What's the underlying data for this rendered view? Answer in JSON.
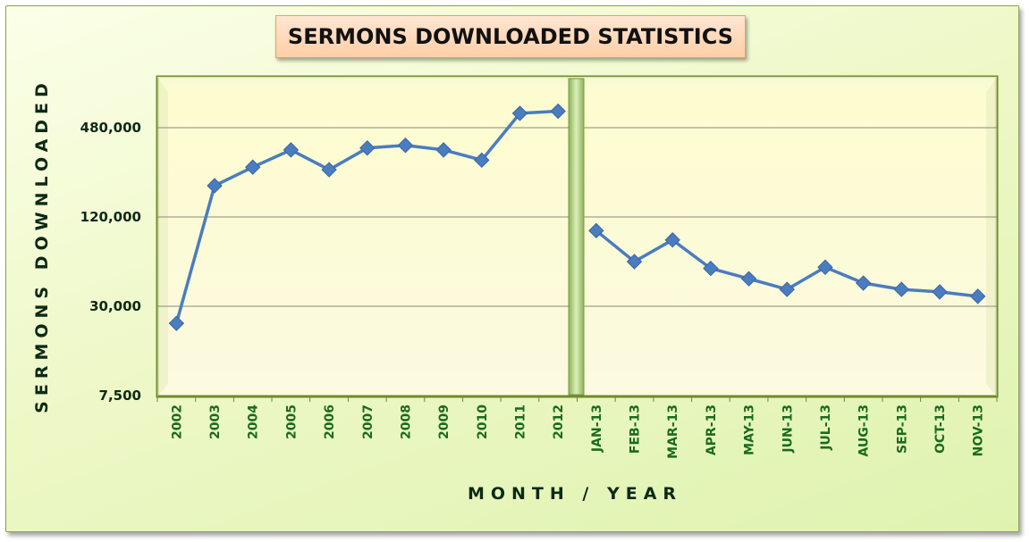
{
  "chart_data": {
    "type": "line",
    "title": "SERMONS DOWNLOADED STATISTICS",
    "xlabel": "MONTH  /  YEAR",
    "ylabel": "SERMONS  DOWNLOADED",
    "yscale": "log",
    "ylim": [
      7500,
      960000
    ],
    "yticks": [
      7500,
      30000,
      120000,
      480000
    ],
    "ytick_labels": [
      "7,500",
      "30,000",
      "120,000",
      "480,000"
    ],
    "grid": true,
    "legend": "none",
    "series_color": "#4a7cc0",
    "segments": [
      {
        "categories": [
          "2002",
          "2003",
          "2004",
          "2005",
          "2006",
          "2007",
          "2008",
          "2009",
          "2010",
          "2011",
          "2012"
        ],
        "values": [
          23000,
          195000,
          260000,
          340000,
          250000,
          350000,
          365000,
          340000,
          290000,
          600000,
          620000
        ]
      },
      {
        "categories": [
          "JAN-13",
          "FEB-13",
          "MAR-13",
          "APR-13",
          "MAY-13",
          "JUN-13",
          "JUL-13",
          "AUG-13",
          "SEP-13",
          "OCT-13",
          "NOV-13"
        ],
        "values": [
          97000,
          60000,
          84000,
          54000,
          46000,
          39000,
          55000,
          43000,
          39000,
          37500,
          35000
        ]
      }
    ]
  }
}
